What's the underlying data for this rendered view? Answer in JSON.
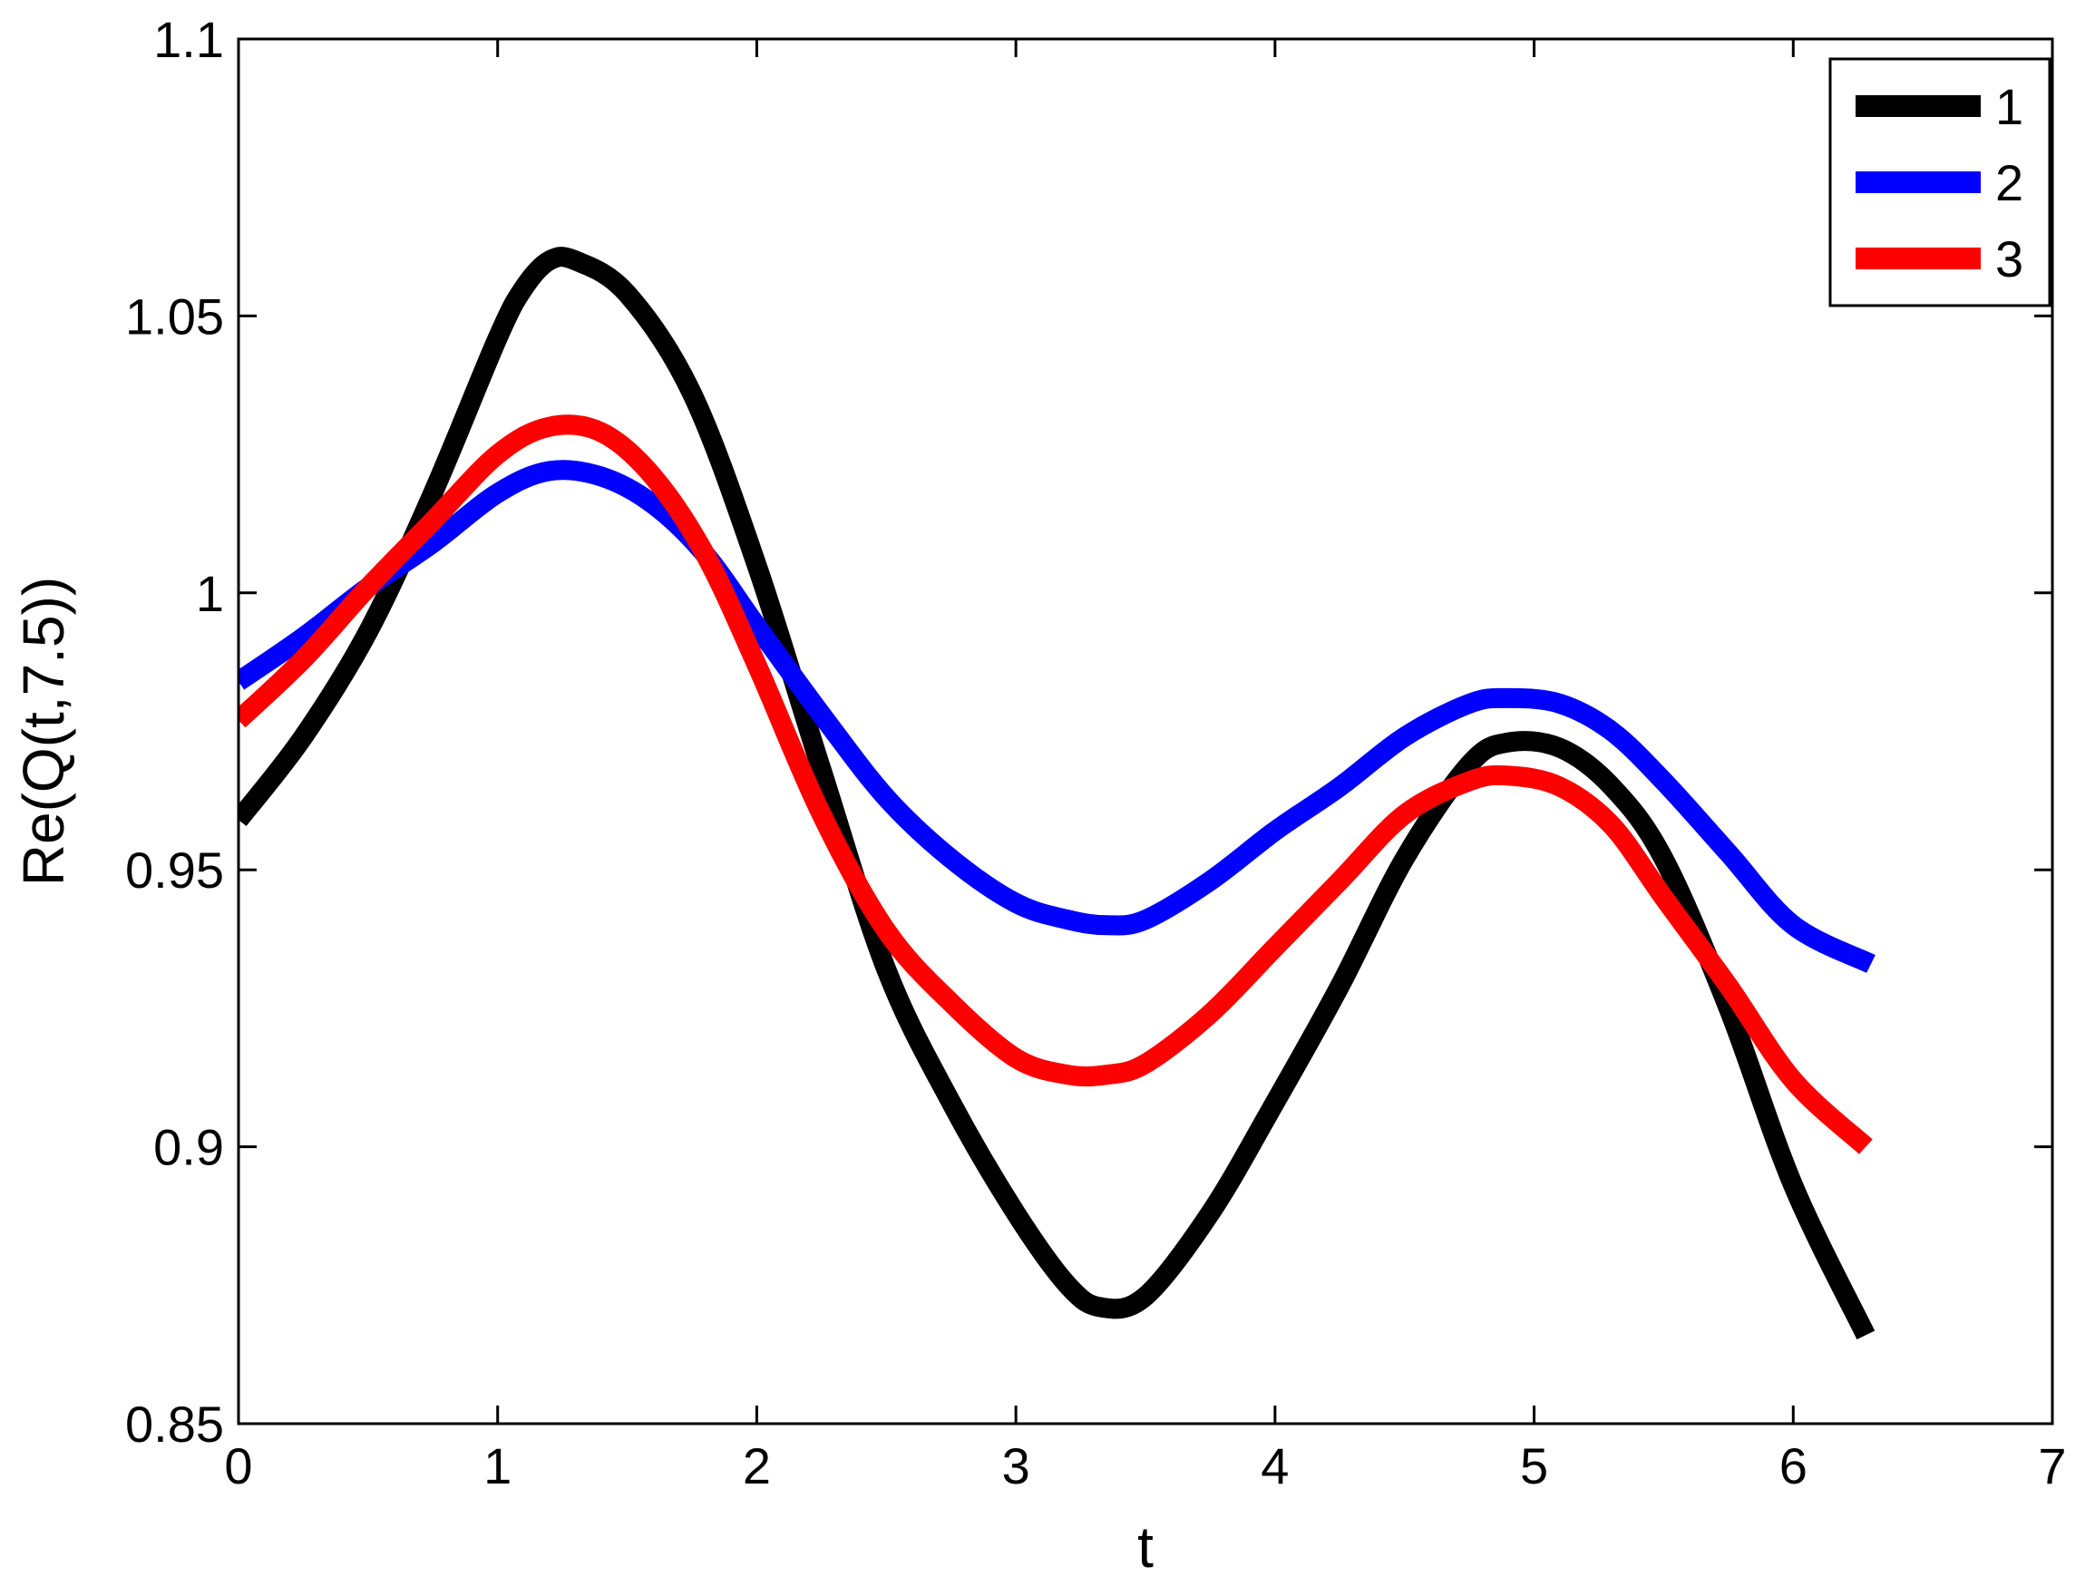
{
  "chart_data": {
    "type": "line",
    "title": "",
    "xlabel": "t",
    "ylabel": "Re(Q(t,7.5))",
    "xlim": [
      0,
      7
    ],
    "ylim": [
      0.85,
      1.1
    ],
    "xticks": [
      0,
      1,
      2,
      3,
      4,
      5,
      6,
      7
    ],
    "xtick_labels": [
      "0",
      "1",
      "2",
      "3",
      "4",
      "5",
      "6",
      "7"
    ],
    "yticks": [
      0.85,
      0.9,
      0.95,
      1.0,
      1.05,
      1.1
    ],
    "ytick_labels": [
      "0.85",
      "0.9",
      "0.95",
      "1",
      "1.05",
      "1.1"
    ],
    "grid": false,
    "legend_position": "top-right",
    "series": [
      {
        "name": "1",
        "color": "#000000",
        "x": [
          0,
          0.25,
          0.5,
          0.75,
          1.0,
          1.1,
          1.2,
          1.3,
          1.5,
          1.75,
          2.0,
          2.25,
          2.5,
          2.75,
          3.0,
          3.2,
          3.33,
          3.5,
          3.75,
          4.0,
          4.25,
          4.5,
          4.75,
          4.9,
          5.1,
          5.3,
          5.5,
          5.75,
          6.0,
          6.28
        ],
        "y": [
          0.959,
          0.974,
          0.993,
          1.018,
          1.046,
          1.055,
          1.06,
          1.06,
          1.054,
          1.036,
          1.005,
          0.968,
          0.932,
          0.908,
          0.888,
          0.875,
          0.871,
          0.873,
          0.888,
          0.908,
          0.929,
          0.952,
          0.969,
          0.973,
          0.972,
          0.965,
          0.952,
          0.925,
          0.893,
          0.866
        ]
      },
      {
        "name": "2",
        "color": "#0000FF",
        "x": [
          0,
          0.25,
          0.5,
          0.75,
          1.0,
          1.2,
          1.4,
          1.6,
          1.8,
          2.0,
          2.25,
          2.5,
          2.75,
          3.0,
          3.2,
          3.35,
          3.5,
          3.75,
          4.0,
          4.25,
          4.5,
          4.75,
          4.9,
          5.1,
          5.3,
          5.5,
          5.75,
          6.0,
          6.3
        ],
        "y": [
          0.984,
          0.992,
          1.001,
          1.009,
          1.018,
          1.022,
          1.021,
          1.016,
          1.007,
          0.994,
          0.978,
          0.963,
          0.952,
          0.944,
          0.941,
          0.94,
          0.941,
          0.948,
          0.957,
          0.965,
          0.974,
          0.98,
          0.981,
          0.98,
          0.975,
          0.966,
          0.953,
          0.94,
          0.933
        ]
      },
      {
        "name": "3",
        "color": "#FF0000",
        "x": [
          0,
          0.25,
          0.5,
          0.75,
          1.0,
          1.2,
          1.4,
          1.6,
          1.8,
          2.0,
          2.25,
          2.5,
          2.75,
          3.0,
          3.2,
          3.35,
          3.5,
          3.75,
          4.0,
          4.25,
          4.5,
          4.75,
          4.9,
          5.1,
          5.3,
          5.5,
          5.75,
          6.0,
          6.28
        ],
        "y": [
          0.977,
          0.988,
          1.001,
          1.013,
          1.025,
          1.03,
          1.029,
          1.021,
          1.007,
          0.987,
          0.96,
          0.939,
          0.926,
          0.916,
          0.913,
          0.913,
          0.915,
          0.924,
          0.936,
          0.948,
          0.96,
          0.966,
          0.967,
          0.965,
          0.958,
          0.945,
          0.929,
          0.912,
          0.9
        ]
      }
    ]
  }
}
